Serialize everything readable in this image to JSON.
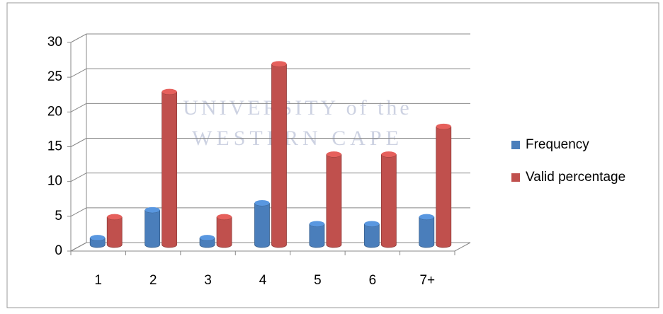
{
  "chart_data": {
    "type": "bar3d",
    "watermark": [
      "UNIVERSITY of the",
      "WESTERN CAPE"
    ],
    "categories": [
      "1",
      "2",
      "3",
      "4",
      "5",
      "6",
      "7+"
    ],
    "series": [
      {
        "name": "Frequency",
        "color": "#4a7ebb",
        "values": [
          1,
          5,
          1,
          6,
          3,
          3,
          4
        ]
      },
      {
        "name": "Valid percentage",
        "color": "#c0504d",
        "values": [
          4,
          22,
          4,
          26,
          13,
          13,
          17
        ]
      }
    ],
    "ylim": [
      0,
      30
    ],
    "yticks": [
      0,
      5,
      10,
      15,
      20,
      25,
      30
    ],
    "grid": true,
    "legend": "right"
  }
}
